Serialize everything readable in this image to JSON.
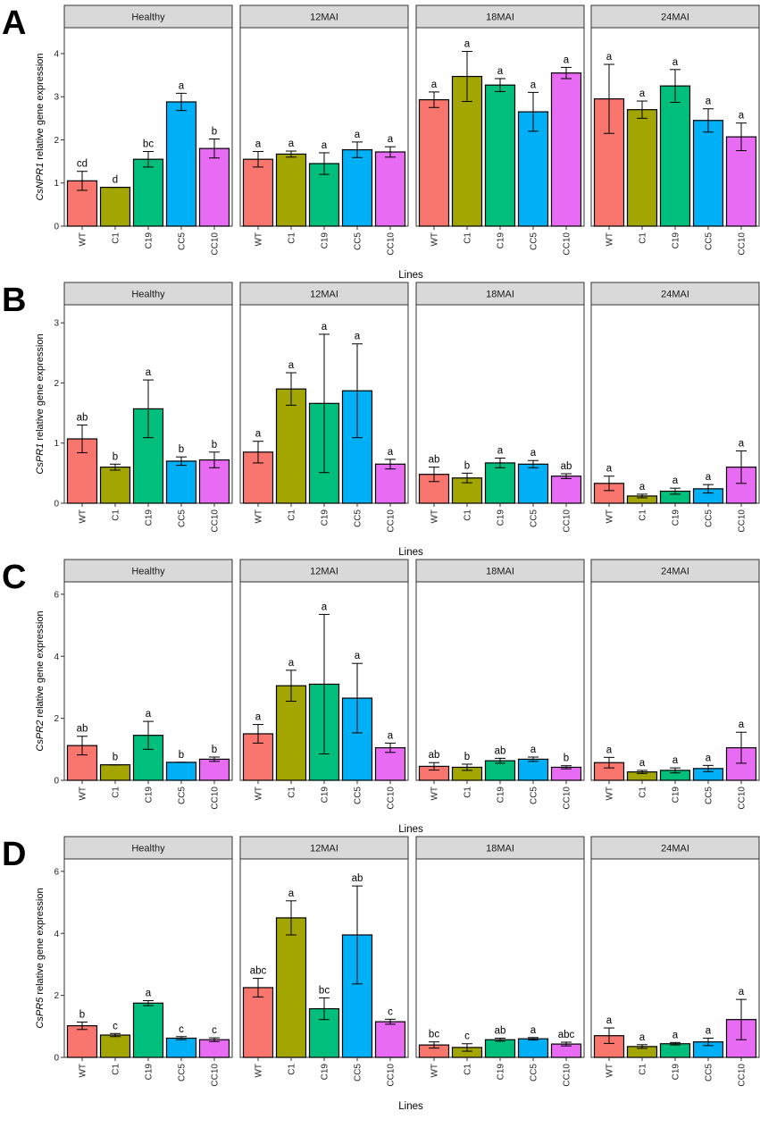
{
  "figure": {
    "facets": [
      "Healthy",
      "12MAI",
      "18MAI",
      "24MAI"
    ],
    "lines": [
      "WT",
      "C1",
      "C19",
      "CC5",
      "CC10"
    ],
    "colors": [
      "#F8766D",
      "#A3A500",
      "#00BF7D",
      "#00B0F6",
      "#E76BF3"
    ],
    "xlabel": "Lines"
  },
  "chart_data": [
    {
      "type": "bar",
      "panel_label": "A",
      "gene": "CsNPR1",
      "ylabel_suffix": " relative gene expression",
      "ylim": [
        0,
        4.6
      ],
      "yticks": [
        0,
        1,
        2,
        3,
        4
      ],
      "categories": [
        "WT",
        "C1",
        "C19",
        "CC5",
        "CC10"
      ],
      "series": [
        {
          "name": "Healthy",
          "values": [
            1.05,
            0.9,
            1.55,
            2.88,
            1.8
          ],
          "errors": [
            0.22,
            0.0,
            0.18,
            0.2,
            0.22
          ],
          "letters": [
            "cd",
            "d",
            "bc",
            "a",
            "b"
          ]
        },
        {
          "name": "12MAI",
          "values": [
            1.55,
            1.67,
            1.45,
            1.77,
            1.72
          ],
          "errors": [
            0.18,
            0.07,
            0.25,
            0.18,
            0.12
          ],
          "letters": [
            "a",
            "a",
            "a",
            "a",
            "a"
          ]
        },
        {
          "name": "18MAI",
          "values": [
            2.93,
            3.47,
            3.27,
            2.65,
            3.55
          ],
          "errors": [
            0.18,
            0.58,
            0.15,
            0.45,
            0.13
          ],
          "letters": [
            "a",
            "a",
            "a",
            "a",
            "a"
          ]
        },
        {
          "name": "24MAI",
          "values": [
            2.95,
            2.7,
            3.25,
            2.45,
            2.07
          ],
          "errors": [
            0.8,
            0.2,
            0.38,
            0.27,
            0.32
          ],
          "letters": [
            "a",
            "a",
            "a",
            "a",
            "a"
          ]
        }
      ]
    },
    {
      "type": "bar",
      "panel_label": "B",
      "gene": "CsPR1",
      "ylabel_suffix": " relative gene expression",
      "ylim": [
        0,
        3.3
      ],
      "yticks": [
        0,
        1,
        2,
        3
      ],
      "categories": [
        "WT",
        "C1",
        "C19",
        "CC5",
        "CC10"
      ],
      "series": [
        {
          "name": "Healthy",
          "values": [
            1.07,
            0.6,
            1.57,
            0.7,
            0.72
          ],
          "errors": [
            0.23,
            0.05,
            0.48,
            0.07,
            0.13
          ],
          "letters": [
            "ab",
            "b",
            "a",
            "b",
            "b"
          ]
        },
        {
          "name": "12MAI",
          "values": [
            0.85,
            1.9,
            1.66,
            1.87,
            0.65
          ],
          "errors": [
            0.18,
            0.27,
            1.15,
            0.78,
            0.08
          ],
          "letters": [
            "a",
            "a",
            "a",
            "a",
            "a"
          ]
        },
        {
          "name": "18MAI",
          "values": [
            0.48,
            0.42,
            0.67,
            0.65,
            0.45
          ],
          "errors": [
            0.12,
            0.08,
            0.08,
            0.06,
            0.04
          ],
          "letters": [
            "ab",
            "b",
            "a",
            "a",
            "ab"
          ]
        },
        {
          "name": "24MAI",
          "values": [
            0.33,
            0.12,
            0.2,
            0.24,
            0.6
          ],
          "errors": [
            0.12,
            0.03,
            0.05,
            0.07,
            0.27
          ],
          "letters": [
            "a",
            "a",
            "a",
            "a",
            "a"
          ]
        }
      ]
    },
    {
      "type": "bar",
      "panel_label": "C",
      "gene": "CsPR2",
      "ylabel_suffix": " relative gene expression",
      "ylim": [
        0,
        6.4
      ],
      "yticks": [
        0,
        2,
        4,
        6
      ],
      "categories": [
        "WT",
        "C1",
        "C19",
        "CC5",
        "CC10"
      ],
      "series": [
        {
          "name": "Healthy",
          "values": [
            1.12,
            0.5,
            1.45,
            0.58,
            0.68
          ],
          "errors": [
            0.3,
            0.0,
            0.45,
            0.0,
            0.07
          ],
          "letters": [
            "ab",
            "b",
            "a",
            "b",
            "b"
          ]
        },
        {
          "name": "12MAI",
          "values": [
            1.5,
            3.05,
            3.1,
            2.65,
            1.05
          ],
          "errors": [
            0.3,
            0.5,
            2.25,
            1.12,
            0.15
          ],
          "letters": [
            "a",
            "a",
            "a",
            "a",
            "a"
          ]
        },
        {
          "name": "18MAI",
          "values": [
            0.45,
            0.42,
            0.63,
            0.68,
            0.42
          ],
          "errors": [
            0.12,
            0.1,
            0.08,
            0.07,
            0.05
          ],
          "letters": [
            "ab",
            "b",
            "ab",
            "a",
            "b"
          ]
        },
        {
          "name": "24MAI",
          "values": [
            0.57,
            0.27,
            0.32,
            0.38,
            1.05
          ],
          "errors": [
            0.17,
            0.05,
            0.08,
            0.1,
            0.5
          ],
          "letters": [
            "a",
            "a",
            "a",
            "a",
            "a"
          ]
        }
      ]
    },
    {
      "type": "bar",
      "panel_label": "D",
      "gene": "CsPR5",
      "ylabel_suffix": " relative gene expression",
      "ylim": [
        0,
        6.4
      ],
      "yticks": [
        0,
        2,
        4,
        6
      ],
      "categories": [
        "WT",
        "C1",
        "C19",
        "CC5",
        "CC10"
      ],
      "series": [
        {
          "name": "Healthy",
          "values": [
            1.02,
            0.72,
            1.75,
            0.62,
            0.57
          ],
          "errors": [
            0.12,
            0.05,
            0.08,
            0.05,
            0.06
          ],
          "letters": [
            "b",
            "c",
            "a",
            "c",
            "c"
          ]
        },
        {
          "name": "12MAI",
          "values": [
            2.25,
            4.5,
            1.57,
            3.95,
            1.15
          ],
          "errors": [
            0.3,
            0.55,
            0.35,
            1.58,
            0.08
          ],
          "letters": [
            "abc",
            "a",
            "bc",
            "ab",
            "c"
          ]
        },
        {
          "name": "18MAI",
          "values": [
            0.4,
            0.32,
            0.57,
            0.6,
            0.43
          ],
          "errors": [
            0.1,
            0.12,
            0.05,
            0.04,
            0.06
          ],
          "letters": [
            "bc",
            "c",
            "ab",
            "a",
            "abc"
          ]
        },
        {
          "name": "24MAI",
          "values": [
            0.7,
            0.35,
            0.44,
            0.5,
            1.22
          ],
          "errors": [
            0.25,
            0.06,
            0.04,
            0.12,
            0.65
          ],
          "letters": [
            "a",
            "a",
            "a",
            "a",
            "a"
          ]
        }
      ]
    }
  ]
}
